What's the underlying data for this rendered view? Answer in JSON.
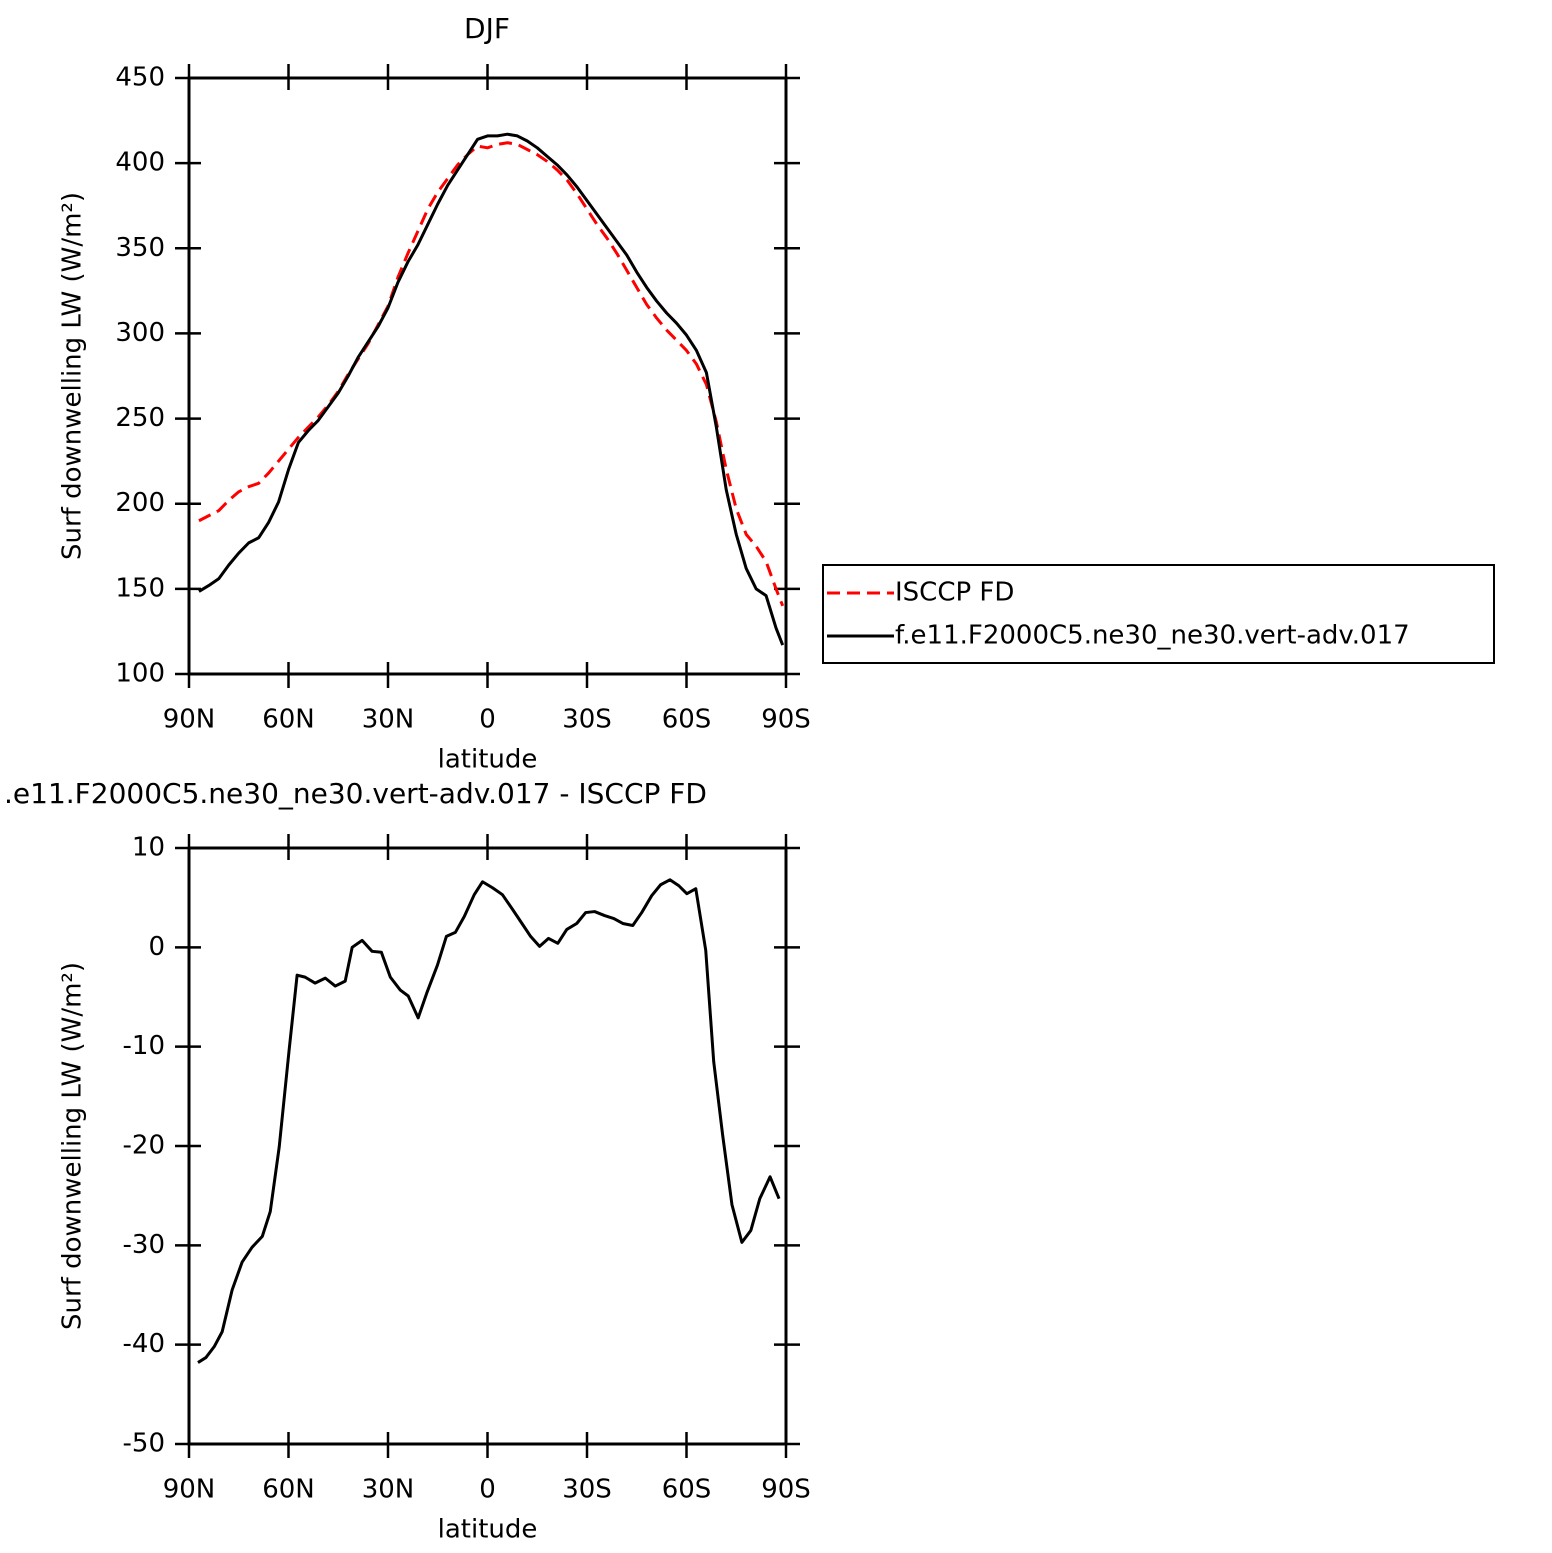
{
  "chart_data": [
    {
      "type": "line",
      "title": "DJF",
      "x_label": "latitude",
      "y_label": "Surf downwelling LW (W/m²)",
      "xlim": [
        90,
        -90
      ],
      "xticks": [
        {
          "value": 90,
          "label": "90N"
        },
        {
          "value": 60,
          "label": "60N"
        },
        {
          "value": 30,
          "label": "30N"
        },
        0,
        {
          "value": -30,
          "label": "30S"
        },
        {
          "value": -60,
          "label": "60S"
        },
        {
          "value": -90,
          "label": "90S"
        }
      ],
      "ylim": [
        100,
        450
      ],
      "yticks": [
        100,
        150,
        200,
        250,
        300,
        350,
        400,
        450
      ],
      "legend": "right",
      "x": [
        87,
        84,
        81,
        78,
        75,
        72,
        69,
        66,
        63,
        60,
        57,
        54,
        51,
        48,
        45,
        42,
        39,
        36,
        33,
        30,
        27,
        24,
        21,
        18,
        15,
        12,
        9,
        6,
        3,
        0,
        -3,
        -6,
        -9,
        -12,
        -15,
        -18,
        -21,
        -24,
        -27,
        -30,
        -33,
        -36,
        -39,
        -42,
        -45,
        -48,
        -51,
        -54,
        -57,
        -60,
        -63,
        -66,
        -69,
        -72,
        -75,
        -78,
        -81,
        -84,
        -87,
        -89
      ],
      "series": [
        {
          "name": "ISCCP FD",
          "color": "#ff0000",
          "line_style": "dashed",
          "values": [
            190,
            193,
            196,
            202,
            207,
            210,
            212,
            218,
            225,
            232,
            239,
            245,
            251,
            258,
            266,
            276,
            285,
            294,
            305,
            316,
            333,
            347,
            360,
            373,
            383,
            391,
            399,
            405,
            410,
            409,
            411,
            412,
            411,
            408,
            405,
            401,
            396,
            390,
            382,
            373,
            364,
            356,
            347,
            337,
            327,
            317,
            309,
            302,
            296,
            290,
            282,
            270,
            248,
            220,
            197,
            182,
            175,
            166,
            150,
            140
          ]
        },
        {
          "name": "f.e11.F2000C5.ne30_ne30.vert-adv.017",
          "color": "#000000",
          "line_style": "solid",
          "values": [
            148.5,
            152,
            156,
            164,
            171,
            177,
            180,
            189,
            201,
            220,
            236,
            243,
            249,
            257,
            265,
            275,
            286,
            295,
            304,
            315,
            330,
            342,
            352,
            364,
            376,
            387,
            396,
            405,
            414,
            416,
            416,
            417,
            416,
            413,
            409,
            404,
            399,
            393,
            386,
            378,
            370,
            362,
            354,
            346,
            336,
            327,
            319,
            312,
            306,
            299,
            290,
            277,
            245,
            208,
            182,
            162,
            150,
            146,
            127,
            117
          ]
        }
      ]
    },
    {
      "type": "line",
      "title": ".e11.F2000C5.ne30_ne30.vert-adv.017 - ISCCP FD",
      "x_label": "latitude",
      "y_label": "Surf downwelling LW (W/m²)",
      "xlim": [
        90,
        -90
      ],
      "xticks": [
        {
          "value": 90,
          "label": "90N"
        },
        {
          "value": 60,
          "label": "60N"
        },
        {
          "value": 30,
          "label": "30N"
        },
        0,
        {
          "value": -30,
          "label": "30S"
        },
        {
          "value": -60,
          "label": "60S"
        },
        {
          "value": -90,
          "label": "90S"
        }
      ],
      "ylim": [
        -50,
        10
      ],
      "yticks": [
        -50,
        -40,
        -30,
        -20,
        -10,
        0,
        10
      ],
      "color": "#000000",
      "x": [
        87.3,
        84.9,
        82.4,
        80.0,
        77.0,
        74.0,
        71.0,
        67.9,
        65.5,
        62.8,
        59.8,
        57.4,
        55.0,
        52.0,
        48.9,
        45.9,
        42.9,
        40.8,
        37.8,
        34.8,
        32.0,
        29.3,
        26.3,
        23.9,
        20.9,
        18.2,
        15.1,
        12.4,
        9.7,
        7.0,
        4.0,
        1.5,
        -1.5,
        -4.5,
        -7.6,
        -10.6,
        -13.0,
        -15.7,
        -18.4,
        -21.2,
        -23.9,
        -26.9,
        -29.6,
        -32.3,
        -35.3,
        -38.1,
        -40.8,
        -43.8,
        -46.5,
        -49.5,
        -52.2,
        -55.0,
        -57.7,
        -60.1,
        -62.8,
        -65.8,
        -68.2,
        -70.9,
        -73.7,
        -76.7,
        -79.4,
        -82.1,
        -85.2,
        -87.9
      ],
      "values": [
        -41.8,
        -41.3,
        -40.2,
        -38.7,
        -34.5,
        -31.7,
        -30.2,
        -29.1,
        -26.6,
        -20.1,
        -10.3,
        -2.8,
        -3.0,
        -3.6,
        -3.1,
        -3.9,
        -3.4,
        0,
        0.7,
        -0.4,
        -0.5,
        -3,
        -4.3,
        -4.9,
        -7.1,
        -4.5,
        -1.8,
        1.1,
        1.5,
        3.1,
        5.3,
        6.6,
        6.0,
        5.3,
        3.8,
        2.3,
        1.1,
        0.1,
        0.9,
        0.4,
        1.8,
        2.4,
        3.5,
        3.6,
        3.2,
        2.9,
        2.4,
        2.2,
        3.5,
        5.2,
        6.3,
        6.8,
        6.2,
        5.4,
        5.9,
        -0.3,
        -11.5,
        -18.9,
        -25.9,
        -29.7,
        -28.5,
        -25.3,
        -23.1,
        -25.3
      ]
    }
  ]
}
